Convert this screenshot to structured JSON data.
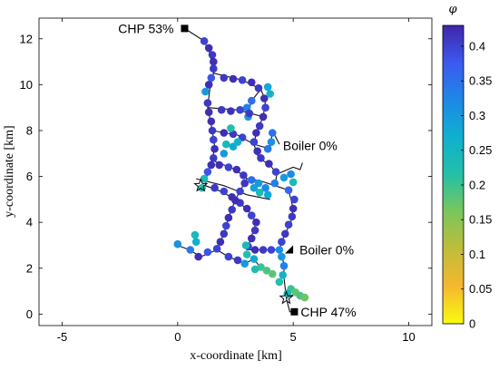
{
  "chart_data": {
    "type": "scatter",
    "xlabel": "x-coordinate [km]",
    "ylabel": "y-coordinate [km]",
    "xlim": [
      -6,
      11
    ],
    "ylim": [
      -0.5,
      12.9
    ],
    "xticks": [
      -5,
      0,
      5,
      10
    ],
    "yticks": [
      0,
      2,
      4,
      6,
      8,
      10,
      12
    ],
    "grid": false,
    "colorbar": {
      "label": "φ",
      "range": [
        0,
        0.43
      ],
      "ticks": [
        0,
        0.05,
        0.1,
        0.15,
        0.2,
        0.25,
        0.3,
        0.35,
        0.4
      ],
      "tick_labels": [
        "0",
        "0.05",
        "0.1",
        "0.15",
        "0.2",
        "0.25",
        "0.3",
        "0.35",
        "0.4"
      ],
      "colormap": "parula"
    },
    "annotations": [
      {
        "text": "CHP 53%",
        "x": 0.3,
        "y": 12.45,
        "marker": "square"
      },
      {
        "text": "Boiler 0%",
        "x": 4.4,
        "y": 7.35,
        "marker": "none"
      },
      {
        "text": "Boiler 0%",
        "x": 4.8,
        "y": 2.8,
        "marker": "triangle"
      },
      {
        "text": "CHP 47%",
        "x": 5.05,
        "y": 0.1,
        "marker": "square"
      }
    ],
    "special_markers": [
      {
        "type": "star",
        "x": 4.7,
        "y": 0.7
      },
      {
        "type": "star",
        "x": 1.0,
        "y": 5.6
      }
    ],
    "network_lines": [
      [
        [
          0.3,
          12.45
        ],
        [
          1.15,
          11.9
        ],
        [
          1.4,
          11.35
        ],
        [
          1.55,
          10.5
        ],
        [
          1.4,
          9.9
        ],
        [
          1.3,
          9.0
        ],
        [
          1.5,
          8.0
        ],
        [
          1.6,
          7.3
        ],
        [
          1.5,
          6.7
        ],
        [
          1.3,
          6.2
        ],
        [
          1.2,
          5.6
        ]
      ],
      [
        [
          1.55,
          10.5
        ],
        [
          2.8,
          10.2
        ],
        [
          3.6,
          9.8
        ],
        [
          3.8,
          9.3
        ],
        [
          3.7,
          8.6
        ],
        [
          3.4,
          7.9
        ],
        [
          3.3,
          7.4
        ],
        [
          3.5,
          6.8
        ],
        [
          4.0,
          6.5
        ],
        [
          4.3,
          6.1
        ],
        [
          4.2,
          5.6
        ]
      ],
      [
        [
          3.6,
          9.8
        ],
        [
          3.2,
          9.3
        ],
        [
          3.0,
          8.6
        ]
      ],
      [
        [
          1.5,
          8.0
        ],
        [
          2.6,
          7.8
        ],
        [
          3.3,
          7.4
        ],
        [
          4.0,
          7.2
        ],
        [
          4.1,
          8.0
        ],
        [
          4.4,
          7.4
        ]
      ],
      [
        [
          1.3,
          9.0
        ],
        [
          2.6,
          8.9
        ],
        [
          3.7,
          8.6
        ]
      ],
      [
        [
          1.5,
          6.7
        ],
        [
          2.5,
          6.3
        ],
        [
          3.0,
          5.9
        ],
        [
          3.6,
          5.8
        ],
        [
          4.2,
          5.6
        ],
        [
          4.8,
          5.4
        ],
        [
          5.0,
          4.6
        ],
        [
          4.9,
          4.0
        ],
        [
          4.6,
          3.4
        ],
        [
          4.4,
          2.8
        ],
        [
          4.6,
          2.2
        ],
        [
          4.6,
          1.6
        ],
        [
          4.7,
          0.7
        ],
        [
          4.85,
          0.1
        ],
        [
          5.05,
          0.1
        ]
      ],
      [
        [
          1.2,
          5.6
        ],
        [
          2.0,
          5.3
        ],
        [
          3.0,
          4.6
        ],
        [
          3.4,
          4.0
        ],
        [
          3.2,
          3.4
        ],
        [
          3.0,
          2.8
        ],
        [
          3.6,
          2.8
        ],
        [
          4.4,
          2.8
        ]
      ],
      [
        [
          3.0,
          5.9
        ],
        [
          2.5,
          5.0
        ],
        [
          2.2,
          4.2
        ],
        [
          2.0,
          3.5
        ],
        [
          1.7,
          2.8
        ],
        [
          1.0,
          2.5
        ],
        [
          0.5,
          2.8
        ],
        [
          0.0,
          3.0
        ]
      ],
      [
        [
          1.7,
          2.8
        ],
        [
          2.2,
          2.5
        ],
        [
          2.9,
          2.2
        ],
        [
          3.3,
          2.4
        ],
        [
          3.6,
          2.0
        ],
        [
          4.1,
          1.8
        ]
      ],
      [
        [
          4.7,
          0.7
        ],
        [
          5.1,
          0.9
        ],
        [
          5.5,
          0.7
        ]
      ],
      [
        [
          4.3,
          6.1
        ],
        [
          5.0,
          6.4
        ],
        [
          5.3,
          6.3
        ],
        [
          5.4,
          6.6
        ]
      ],
      [
        [
          0.8,
          5.9
        ],
        [
          2.0,
          5.6
        ],
        [
          3.0,
          5.2
        ],
        [
          4.0,
          5.0
        ]
      ]
    ],
    "points": [
      {
        "x": 1.15,
        "y": 11.9,
        "v": 0.4
      },
      {
        "x": 1.35,
        "y": 11.6,
        "v": 0.42
      },
      {
        "x": 1.5,
        "y": 11.3,
        "v": 0.41
      },
      {
        "x": 1.55,
        "y": 11.0,
        "v": 0.42
      },
      {
        "x": 1.55,
        "y": 10.7,
        "v": 0.41
      },
      {
        "x": 1.45,
        "y": 10.3,
        "v": 0.38
      },
      {
        "x": 1.35,
        "y": 10.0,
        "v": 0.42
      },
      {
        "x": 1.2,
        "y": 9.7,
        "v": 0.3
      },
      {
        "x": 1.3,
        "y": 9.2,
        "v": 0.41
      },
      {
        "x": 1.35,
        "y": 8.8,
        "v": 0.42
      },
      {
        "x": 1.45,
        "y": 8.4,
        "v": 0.42
      },
      {
        "x": 1.5,
        "y": 8.0,
        "v": 0.41
      },
      {
        "x": 1.55,
        "y": 7.6,
        "v": 0.4
      },
      {
        "x": 1.6,
        "y": 7.2,
        "v": 0.42
      },
      {
        "x": 1.55,
        "y": 6.8,
        "v": 0.41
      },
      {
        "x": 1.45,
        "y": 6.5,
        "v": 0.42
      },
      {
        "x": 1.3,
        "y": 6.2,
        "v": 0.38
      },
      {
        "x": 1.15,
        "y": 5.9,
        "v": 0.24
      },
      {
        "x": 1.05,
        "y": 5.5,
        "v": 0.22
      },
      {
        "x": 2.0,
        "y": 10.3,
        "v": 0.41
      },
      {
        "x": 2.4,
        "y": 10.25,
        "v": 0.42
      },
      {
        "x": 2.8,
        "y": 10.2,
        "v": 0.4
      },
      {
        "x": 3.2,
        "y": 10.1,
        "v": 0.42
      },
      {
        "x": 3.5,
        "y": 9.85,
        "v": 0.41
      },
      {
        "x": 3.75,
        "y": 9.4,
        "v": 0.42
      },
      {
        "x": 3.8,
        "y": 9.0,
        "v": 0.4
      },
      {
        "x": 3.7,
        "y": 8.6,
        "v": 0.42
      },
      {
        "x": 3.55,
        "y": 8.2,
        "v": 0.41
      },
      {
        "x": 3.4,
        "y": 7.9,
        "v": 0.42
      },
      {
        "x": 3.3,
        "y": 7.5,
        "v": 0.4
      },
      {
        "x": 3.45,
        "y": 7.1,
        "v": 0.42
      },
      {
        "x": 3.6,
        "y": 6.8,
        "v": 0.41
      },
      {
        "x": 3.95,
        "y": 6.55,
        "v": 0.42
      },
      {
        "x": 4.25,
        "y": 6.2,
        "v": 0.4
      },
      {
        "x": 4.2,
        "y": 5.7,
        "v": 0.33
      },
      {
        "x": 3.2,
        "y": 9.3,
        "v": 0.35
      },
      {
        "x": 3.0,
        "y": 9.0,
        "v": 0.33
      },
      {
        "x": 3.05,
        "y": 8.6,
        "v": 0.3
      },
      {
        "x": 4.0,
        "y": 9.6,
        "v": 0.26
      },
      {
        "x": 3.9,
        "y": 9.9,
        "v": 0.28
      },
      {
        "x": 1.9,
        "y": 8.9,
        "v": 0.41
      },
      {
        "x": 2.3,
        "y": 8.85,
        "v": 0.42
      },
      {
        "x": 2.7,
        "y": 8.9,
        "v": 0.4
      },
      {
        "x": 3.1,
        "y": 8.75,
        "v": 0.41
      },
      {
        "x": 2.0,
        "y": 7.9,
        "v": 0.42
      },
      {
        "x": 2.4,
        "y": 7.85,
        "v": 0.41
      },
      {
        "x": 2.8,
        "y": 7.7,
        "v": 0.4
      },
      {
        "x": 2.1,
        "y": 7.4,
        "v": 0.24
      },
      {
        "x": 2.4,
        "y": 7.3,
        "v": 0.28
      },
      {
        "x": 2.0,
        "y": 7.0,
        "v": 0.3
      },
      {
        "x": 2.3,
        "y": 8.1,
        "v": 0.22
      },
      {
        "x": 2.6,
        "y": 7.5,
        "v": 0.26
      },
      {
        "x": 3.9,
        "y": 7.2,
        "v": 0.34
      },
      {
        "x": 4.05,
        "y": 7.5,
        "v": 0.31
      },
      {
        "x": 4.1,
        "y": 7.9,
        "v": 0.35
      },
      {
        "x": 1.8,
        "y": 6.5,
        "v": 0.42
      },
      {
        "x": 2.2,
        "y": 6.4,
        "v": 0.4
      },
      {
        "x": 2.55,
        "y": 6.3,
        "v": 0.42
      },
      {
        "x": 2.85,
        "y": 6.05,
        "v": 0.41
      },
      {
        "x": 3.2,
        "y": 5.85,
        "v": 0.35
      },
      {
        "x": 3.5,
        "y": 5.7,
        "v": 0.3
      },
      {
        "x": 3.8,
        "y": 5.5,
        "v": 0.32
      },
      {
        "x": 3.9,
        "y": 5.2,
        "v": 0.28
      },
      {
        "x": 3.55,
        "y": 5.3,
        "v": 0.24
      },
      {
        "x": 3.3,
        "y": 5.5,
        "v": 0.29
      },
      {
        "x": 4.8,
        "y": 5.4,
        "v": 0.36
      },
      {
        "x": 5.05,
        "y": 5.0,
        "v": 0.4
      },
      {
        "x": 5.0,
        "y": 4.6,
        "v": 0.42
      },
      {
        "x": 4.95,
        "y": 4.25,
        "v": 0.41
      },
      {
        "x": 4.8,
        "y": 3.9,
        "v": 0.4
      },
      {
        "x": 4.65,
        "y": 3.5,
        "v": 0.41
      },
      {
        "x": 4.5,
        "y": 3.15,
        "v": 0.4
      },
      {
        "x": 4.4,
        "y": 2.8,
        "v": 0.32
      },
      {
        "x": 4.5,
        "y": 2.5,
        "v": 0.3
      },
      {
        "x": 4.6,
        "y": 2.1,
        "v": 0.33
      },
      {
        "x": 4.55,
        "y": 1.7,
        "v": 0.26
      },
      {
        "x": 4.4,
        "y": 1.4,
        "v": 0.22
      },
      {
        "x": 4.9,
        "y": 1.1,
        "v": 0.2
      },
      {
        "x": 5.1,
        "y": 0.95,
        "v": 0.18
      },
      {
        "x": 5.3,
        "y": 0.8,
        "v": 0.19
      },
      {
        "x": 5.5,
        "y": 0.72,
        "v": 0.17
      },
      {
        "x": 4.75,
        "y": 0.9,
        "v": 0.25
      },
      {
        "x": 1.6,
        "y": 5.5,
        "v": 0.41
      },
      {
        "x": 2.0,
        "y": 5.35,
        "v": 0.4
      },
      {
        "x": 2.35,
        "y": 5.1,
        "v": 0.42
      },
      {
        "x": 2.7,
        "y": 4.85,
        "v": 0.41
      },
      {
        "x": 3.0,
        "y": 4.6,
        "v": 0.42
      },
      {
        "x": 3.2,
        "y": 4.3,
        "v": 0.4
      },
      {
        "x": 3.4,
        "y": 4.0,
        "v": 0.42
      },
      {
        "x": 3.35,
        "y": 3.65,
        "v": 0.41
      },
      {
        "x": 3.2,
        "y": 3.3,
        "v": 0.42
      },
      {
        "x": 3.05,
        "y": 2.95,
        "v": 0.4
      },
      {
        "x": 3.35,
        "y": 2.8,
        "v": 0.42
      },
      {
        "x": 3.7,
        "y": 2.8,
        "v": 0.41
      },
      {
        "x": 4.05,
        "y": 2.8,
        "v": 0.4
      },
      {
        "x": 2.9,
        "y": 5.7,
        "v": 0.41
      },
      {
        "x": 2.7,
        "y": 5.35,
        "v": 0.4
      },
      {
        "x": 2.5,
        "y": 4.95,
        "v": 0.42
      },
      {
        "x": 2.35,
        "y": 4.55,
        "v": 0.41
      },
      {
        "x": 2.2,
        "y": 4.2,
        "v": 0.42
      },
      {
        "x": 2.1,
        "y": 3.85,
        "v": 0.4
      },
      {
        "x": 2.0,
        "y": 3.5,
        "v": 0.41
      },
      {
        "x": 1.85,
        "y": 3.15,
        "v": 0.42
      },
      {
        "x": 1.7,
        "y": 2.85,
        "v": 0.4
      },
      {
        "x": 1.3,
        "y": 2.7,
        "v": 0.38
      },
      {
        "x": 0.9,
        "y": 2.5,
        "v": 0.42
      },
      {
        "x": 0.55,
        "y": 2.8,
        "v": 0.34
      },
      {
        "x": 0.0,
        "y": 3.05,
        "v": 0.31
      },
      {
        "x": 0.8,
        "y": 3.15,
        "v": 0.27
      },
      {
        "x": 0.75,
        "y": 3.45,
        "v": 0.24
      },
      {
        "x": 2.2,
        "y": 2.5,
        "v": 0.4
      },
      {
        "x": 2.6,
        "y": 2.35,
        "v": 0.41
      },
      {
        "x": 2.9,
        "y": 2.2,
        "v": 0.3
      },
      {
        "x": 3.0,
        "y": 2.6,
        "v": 0.22
      },
      {
        "x": 2.95,
        "y": 3.0,
        "v": 0.24
      },
      {
        "x": 3.3,
        "y": 2.4,
        "v": 0.28
      },
      {
        "x": 3.6,
        "y": 2.05,
        "v": 0.2
      },
      {
        "x": 3.85,
        "y": 1.9,
        "v": 0.19
      },
      {
        "x": 4.1,
        "y": 1.75,
        "v": 0.18
      },
      {
        "x": 3.35,
        "y": 1.95,
        "v": 0.23
      },
      {
        "x": 4.9,
        "y": 6.1,
        "v": 0.32
      },
      {
        "x": 4.6,
        "y": 5.95,
        "v": 0.3
      },
      {
        "x": 5.0,
        "y": 5.75,
        "v": 0.24
      }
    ]
  }
}
